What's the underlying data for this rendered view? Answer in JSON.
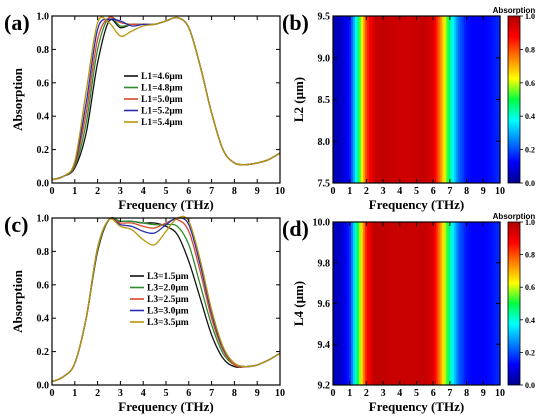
{
  "colors": {
    "L1_4.6": "#111111",
    "L1_4.8": "#2e8b2e",
    "L1_5.0": "#d44a2a",
    "L1_5.2": "#2a2ab0",
    "L1_5.4": "#b8960c",
    "L3_1.5": "#111111",
    "L3_2.0": "#2e8b2e",
    "L3_2.5": "#d44a2a",
    "L3_3.0": "#2a2ab0",
    "L3_3.5": "#b8960c"
  },
  "chart_data": [
    {
      "id": "a",
      "panel_label": "(a)",
      "type": "line",
      "xlabel": "Frequency (THz)",
      "ylabel": "Absorption",
      "xlim": [
        0,
        10
      ],
      "ylim": [
        0,
        1.0
      ],
      "xticks": [
        "0",
        "1",
        "2",
        "3",
        "4",
        "5",
        "6",
        "7",
        "8",
        "9",
        "10"
      ],
      "yticks": [
        "0.0",
        "0.2",
        "0.4",
        "0.6",
        "0.8",
        "1.0"
      ],
      "legend_position": "center-left",
      "x": [
        0,
        0.5,
        1.0,
        1.5,
        2.0,
        2.5,
        3.0,
        3.5,
        4.0,
        4.5,
        5.0,
        5.5,
        6.0,
        6.5,
        7.0,
        7.5,
        8.0,
        8.5,
        9.0,
        9.5,
        10.0
      ],
      "series": [
        {
          "name": "L1=4.6μm",
          "color_key": "L1_4.6",
          "values": [
            0.02,
            0.04,
            0.09,
            0.3,
            0.72,
            0.97,
            0.93,
            0.95,
            0.95,
            0.95,
            0.97,
            0.99,
            0.93,
            0.7,
            0.42,
            0.2,
            0.12,
            0.11,
            0.12,
            0.14,
            0.18
          ]
        },
        {
          "name": "L1=4.8μm",
          "color_key": "L1_4.8",
          "values": [
            0.02,
            0.04,
            0.1,
            0.36,
            0.8,
            0.99,
            0.94,
            0.95,
            0.95,
            0.95,
            0.97,
            0.99,
            0.93,
            0.7,
            0.42,
            0.2,
            0.12,
            0.11,
            0.12,
            0.14,
            0.18
          ]
        },
        {
          "name": "L1=5.0μm",
          "color_key": "L1_5.0",
          "values": [
            0.02,
            0.04,
            0.11,
            0.42,
            0.86,
            0.99,
            0.96,
            0.95,
            0.95,
            0.95,
            0.97,
            0.99,
            0.93,
            0.7,
            0.42,
            0.2,
            0.12,
            0.11,
            0.12,
            0.14,
            0.18
          ]
        },
        {
          "name": "L1=5.2μm",
          "color_key": "L1_5.2",
          "values": [
            0.02,
            0.04,
            0.12,
            0.48,
            0.92,
            0.98,
            0.97,
            0.94,
            0.95,
            0.95,
            0.97,
            0.99,
            0.93,
            0.7,
            0.42,
            0.2,
            0.12,
            0.11,
            0.12,
            0.14,
            0.18
          ]
        },
        {
          "name": "L1=5.4μm",
          "color_key": "L1_5.4",
          "values": [
            0.02,
            0.04,
            0.13,
            0.55,
            0.96,
            0.96,
            0.88,
            0.91,
            0.94,
            0.95,
            0.97,
            0.99,
            0.93,
            0.7,
            0.42,
            0.2,
            0.12,
            0.11,
            0.12,
            0.14,
            0.18
          ]
        }
      ]
    },
    {
      "id": "b",
      "panel_label": "(b)",
      "type": "heatmap",
      "xlabel": "Frequency (THz)",
      "ylabel": "L2 (μm)",
      "xlim": [
        0,
        10
      ],
      "ylim": [
        7.5,
        9.5
      ],
      "xticks": [
        "0",
        "1",
        "2",
        "3",
        "4",
        "5",
        "6",
        "7",
        "8",
        "9",
        "10"
      ],
      "yticks": [
        "7.5",
        "8.0",
        "8.5",
        "9.0",
        "9.5"
      ],
      "colorbar_title": "Absorption",
      "colorbar_ticks": [
        "0.0",
        "0.2",
        "0.4",
        "0.6",
        "0.8",
        "1.0"
      ],
      "colorbar_range": [
        0,
        1.0
      ],
      "x": [
        0,
        0.5,
        1.0,
        1.5,
        2.0,
        2.5,
        3.0,
        3.5,
        4.0,
        4.5,
        5.0,
        5.5,
        6.0,
        6.5,
        7.0,
        7.5,
        8.0,
        8.5,
        9.0,
        9.5,
        10.0
      ],
      "profile": [
        0.04,
        0.06,
        0.14,
        0.45,
        0.82,
        0.96,
        0.97,
        0.96,
        0.95,
        0.95,
        0.96,
        0.97,
        0.93,
        0.72,
        0.45,
        0.24,
        0.14,
        0.12,
        0.12,
        0.14,
        0.17
      ]
    },
    {
      "id": "c",
      "panel_label": "(c)",
      "type": "line",
      "xlabel": "Frequency (THz)",
      "ylabel": "Absorption",
      "xlim": [
        0,
        10
      ],
      "ylim": [
        0,
        1.0
      ],
      "xticks": [
        "0",
        "1",
        "2",
        "3",
        "4",
        "5",
        "6",
        "7",
        "8",
        "9",
        "10"
      ],
      "yticks": [
        "0.0",
        "0.2",
        "0.4",
        "0.6",
        "0.8",
        "1.0"
      ],
      "legend_position": "center-right",
      "x": [
        0,
        0.5,
        1.0,
        1.5,
        2.0,
        2.5,
        3.0,
        3.5,
        4.0,
        4.5,
        5.0,
        5.5,
        6.0,
        6.5,
        7.0,
        7.5,
        8.0,
        8.5,
        9.0,
        9.5,
        10.0
      ],
      "series": [
        {
          "name": "L3=1.5μm",
          "color_key": "L3_1.5",
          "values": [
            0.02,
            0.05,
            0.13,
            0.4,
            0.8,
            0.99,
            0.98,
            0.98,
            0.97,
            0.97,
            0.95,
            0.9,
            0.74,
            0.52,
            0.3,
            0.16,
            0.11,
            0.11,
            0.12,
            0.15,
            0.19
          ]
        },
        {
          "name": "L3=2.0μm",
          "color_key": "L3_2.0",
          "values": [
            0.02,
            0.05,
            0.13,
            0.4,
            0.81,
            0.99,
            0.98,
            0.98,
            0.97,
            0.96,
            0.96,
            0.95,
            0.84,
            0.6,
            0.36,
            0.19,
            0.12,
            0.11,
            0.12,
            0.15,
            0.19
          ]
        },
        {
          "name": "L3=2.5μm",
          "color_key": "L3_2.5",
          "values": [
            0.02,
            0.05,
            0.13,
            0.4,
            0.82,
            0.99,
            0.97,
            0.97,
            0.95,
            0.94,
            0.97,
            0.99,
            0.92,
            0.68,
            0.4,
            0.21,
            0.12,
            0.11,
            0.12,
            0.15,
            0.19
          ]
        },
        {
          "name": "L3=3.0μm",
          "color_key": "L3_3.0",
          "values": [
            0.02,
            0.05,
            0.13,
            0.4,
            0.82,
            0.99,
            0.96,
            0.95,
            0.92,
            0.91,
            0.96,
            1.0,
            0.96,
            0.72,
            0.43,
            0.22,
            0.13,
            0.11,
            0.12,
            0.15,
            0.19
          ]
        },
        {
          "name": "L3=3.5μm",
          "color_key": "L3_3.5",
          "values": [
            0.02,
            0.05,
            0.13,
            0.4,
            0.82,
            0.99,
            0.95,
            0.93,
            0.87,
            0.84,
            0.92,
            1.0,
            0.98,
            0.75,
            0.45,
            0.23,
            0.13,
            0.11,
            0.12,
            0.15,
            0.19
          ]
        }
      ]
    },
    {
      "id": "d",
      "panel_label": "(d)",
      "type": "heatmap",
      "xlabel": "Frequency (THz)",
      "ylabel": "L4 (μm)",
      "xlim": [
        0,
        10
      ],
      "ylim": [
        9.2,
        10.0
      ],
      "xticks": [
        "0",
        "1",
        "2",
        "3",
        "4",
        "5",
        "6",
        "7",
        "8",
        "9",
        "10"
      ],
      "yticks": [
        "9.2",
        "9.4",
        "9.6",
        "9.8",
        "10.0"
      ],
      "colorbar_title": "Absorption",
      "colorbar_ticks": [
        "0.0",
        "0.2",
        "0.4",
        "0.6",
        "0.8",
        "1.0"
      ],
      "colorbar_range": [
        0,
        1.0
      ],
      "x": [
        0,
        0.5,
        1.0,
        1.5,
        2.0,
        2.5,
        3.0,
        3.5,
        4.0,
        4.5,
        5.0,
        5.5,
        6.0,
        6.5,
        7.0,
        7.5,
        8.0,
        8.5,
        9.0,
        9.5,
        10.0
      ],
      "profile": [
        0.04,
        0.07,
        0.16,
        0.5,
        0.86,
        0.98,
        0.97,
        0.96,
        0.96,
        0.96,
        0.96,
        0.97,
        0.93,
        0.7,
        0.44,
        0.23,
        0.14,
        0.12,
        0.12,
        0.14,
        0.17
      ]
    }
  ]
}
